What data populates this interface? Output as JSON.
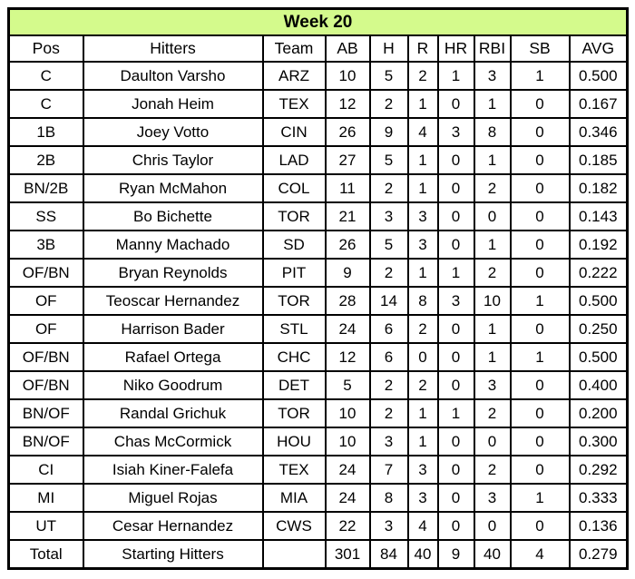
{
  "colors": {
    "title_bg": "#d4fa8c",
    "border": "#000000",
    "cell_bg": "#ffffff"
  },
  "chart_data": {
    "type": "table",
    "title": "Week 20",
    "columns": [
      "Pos",
      "Hitters",
      "Team",
      "AB",
      "H",
      "R",
      "HR",
      "RBI",
      "SB",
      "AVG"
    ],
    "rows": [
      [
        "C",
        "Daulton Varsho",
        "ARZ",
        "10",
        "5",
        "2",
        "1",
        "3",
        "1",
        "0.500"
      ],
      [
        "C",
        "Jonah Heim",
        "TEX",
        "12",
        "2",
        "1",
        "0",
        "1",
        "0",
        "0.167"
      ],
      [
        "1B",
        "Joey Votto",
        "CIN",
        "26",
        "9",
        "4",
        "3",
        "8",
        "0",
        "0.346"
      ],
      [
        "2B",
        "Chris Taylor",
        "LAD",
        "27",
        "5",
        "1",
        "0",
        "1",
        "0",
        "0.185"
      ],
      [
        "BN/2B",
        "Ryan McMahon",
        "COL",
        "11",
        "2",
        "1",
        "0",
        "2",
        "0",
        "0.182"
      ],
      [
        "SS",
        "Bo Bichette",
        "TOR",
        "21",
        "3",
        "3",
        "0",
        "0",
        "0",
        "0.143"
      ],
      [
        "3B",
        "Manny Machado",
        "SD",
        "26",
        "5",
        "3",
        "0",
        "1",
        "0",
        "0.192"
      ],
      [
        "OF/BN",
        "Bryan Reynolds",
        "PIT",
        "9",
        "2",
        "1",
        "1",
        "2",
        "0",
        "0.222"
      ],
      [
        "OF",
        "Teoscar Hernandez",
        "TOR",
        "28",
        "14",
        "8",
        "3",
        "10",
        "1",
        "0.500"
      ],
      [
        "OF",
        "Harrison Bader",
        "STL",
        "24",
        "6",
        "2",
        "0",
        "1",
        "0",
        "0.250"
      ],
      [
        "OF/BN",
        "Rafael Ortega",
        "CHC",
        "12",
        "6",
        "0",
        "0",
        "1",
        "1",
        "0.500"
      ],
      [
        "OF/BN",
        "Niko Goodrum",
        "DET",
        "5",
        "2",
        "2",
        "0",
        "3",
        "0",
        "0.400"
      ],
      [
        "BN/OF",
        "Randal Grichuk",
        "TOR",
        "10",
        "2",
        "1",
        "1",
        "2",
        "0",
        "0.200"
      ],
      [
        "BN/OF",
        "Chas McCormick",
        "HOU",
        "10",
        "3",
        "1",
        "0",
        "0",
        "0",
        "0.300"
      ],
      [
        "CI",
        "Isiah Kiner-Falefa",
        "TEX",
        "24",
        "7",
        "3",
        "0",
        "2",
        "0",
        "0.292"
      ],
      [
        "MI",
        "Miguel Rojas",
        "MIA",
        "24",
        "8",
        "3",
        "0",
        "3",
        "1",
        "0.333"
      ],
      [
        "UT",
        "Cesar Hernandez",
        "CWS",
        "22",
        "3",
        "4",
        "0",
        "0",
        "0",
        "0.136"
      ]
    ],
    "total_row": [
      "Total",
      "Starting Hitters",
      "",
      "301",
      "84",
      "40",
      "9",
      "40",
      "4",
      "0.279"
    ],
    "legend_position": "none",
    "grid": true
  }
}
